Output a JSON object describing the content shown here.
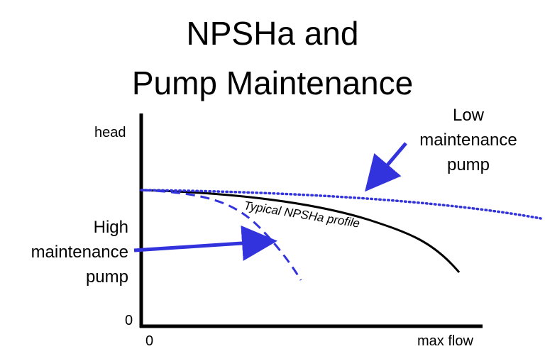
{
  "title": {
    "line1": "NPSHa and",
    "line2": "Pump Maintenance"
  },
  "axes": {
    "y_label": "head",
    "y_zero": "0",
    "x_zero": "0",
    "x_max_label": "max flow"
  },
  "curves": {
    "typical_label": "Typical NPSHa  profile"
  },
  "annotations": {
    "low_maintenance": [
      "Low",
      "maintenance",
      "pump"
    ],
    "high_maintenance": [
      "High",
      "maintenance",
      "pump"
    ]
  },
  "colors": {
    "blue": "#3333dd",
    "black": "#000000"
  }
}
